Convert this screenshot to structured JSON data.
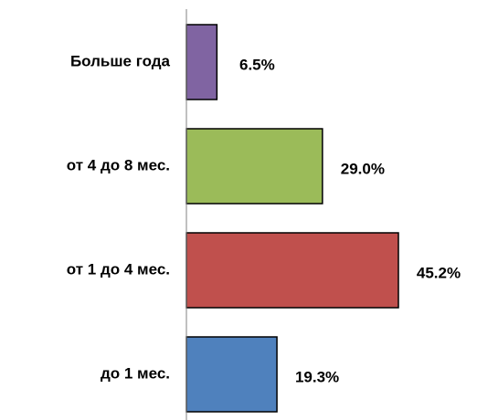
{
  "chart_data": {
    "type": "bar",
    "orientation": "horizontal",
    "title": "",
    "xlabel": "",
    "ylabel": "",
    "xlim": [
      0,
      50
    ],
    "grid": false,
    "legend": "none",
    "categories": [
      "Больше года",
      "от 4 до 8 мес.",
      "от 1 до 4 мес.",
      "до 1 мес."
    ],
    "values": [
      6.5,
      29.0,
      45.2,
      19.3
    ],
    "value_labels": [
      "6.5%",
      "29.0%",
      "45.2%",
      "19.3%"
    ],
    "colors": [
      "#8064a2",
      "#9bbb59",
      "#c0504d",
      "#4f81bd"
    ]
  }
}
